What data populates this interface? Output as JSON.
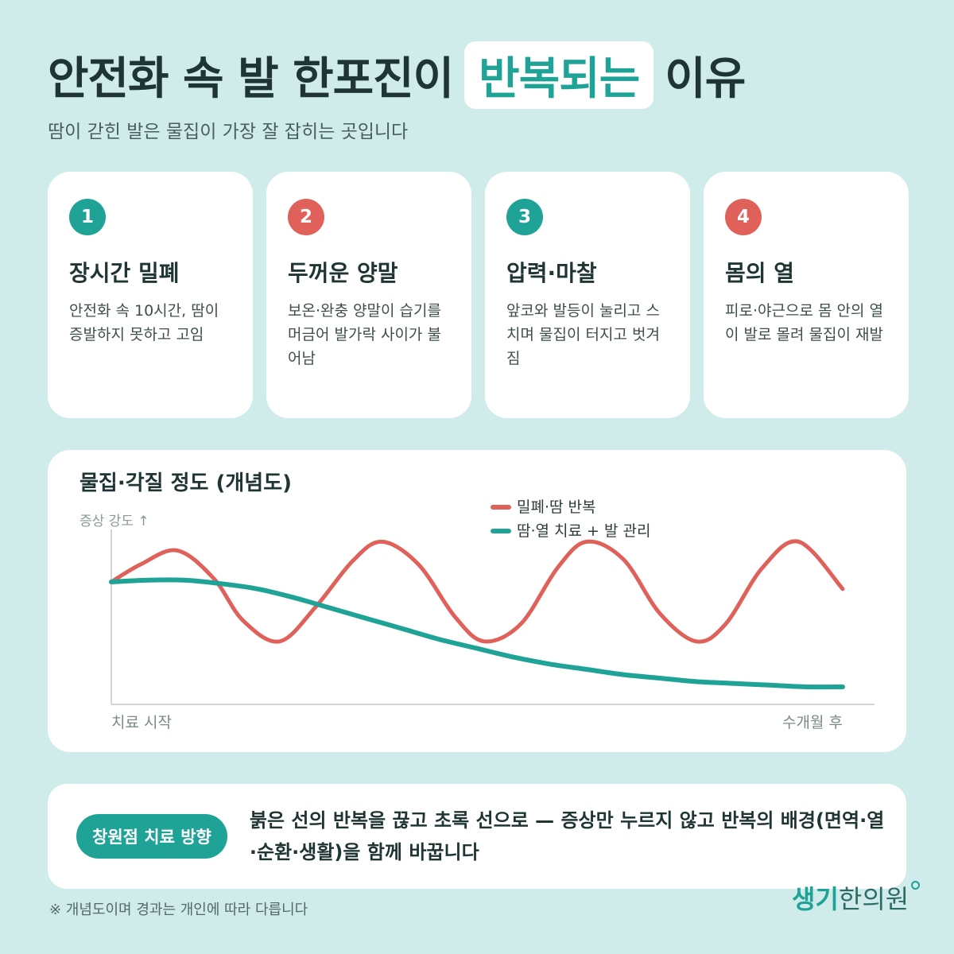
{
  "header": {
    "title_before": "안전화 속 발 한포진이",
    "title_highlight": "반복되는",
    "title_after": "이유",
    "subtitle": "땀이 갇힌 발은 물집이 가장 잘 잡히는 곳입니다"
  },
  "cards": [
    {
      "number": "1",
      "title": "장시간 밀폐",
      "desc": "안전화 속 10시간, 땀이 증발하지 못하고 고임",
      "color": "#1fa396"
    },
    {
      "number": "2",
      "title": "두꺼운 양말",
      "desc": "보온·완충 양말이 습기를 머금어 발가락 사이가 불어남",
      "color": "#e0615a"
    },
    {
      "number": "3",
      "title": "압력·마찰",
      "desc": "앞코와 발등이 눌리고 스치며 물집이 터지고 벗겨짐",
      "color": "#1fa396"
    },
    {
      "number": "4",
      "title": "몸의 열",
      "desc": "피로·야근으로 몸 안의 열이 발로 몰려 물집이 재발",
      "color": "#e0615a"
    }
  ],
  "chart_data": {
    "type": "line",
    "title": "물집·각질 정도 (개념도)",
    "ylabel": "증상 강도 ↑",
    "x_start_label": "치료 시작",
    "x_end_label": "수개월 후",
    "xlim": [
      0,
      100
    ],
    "ylim": [
      0,
      10
    ],
    "grid": false,
    "legend_position": "top-right",
    "series": [
      {
        "name": "밀폐·땀 반복",
        "color": "#e0615a",
        "x": [
          0,
          4,
          9,
          14,
          18,
          23,
          28,
          33,
          37,
          42,
          47,
          51,
          56,
          61,
          65,
          70,
          75,
          80,
          84,
          89,
          94,
          100
        ],
        "y": [
          7.0,
          8.0,
          8.8,
          7.2,
          4.8,
          3.6,
          5.6,
          8.2,
          9.3,
          8.0,
          5.0,
          3.6,
          4.6,
          7.8,
          9.3,
          8.3,
          5.2,
          3.6,
          4.6,
          7.8,
          9.3,
          6.6
        ]
      },
      {
        "name": "땀·열 치료 + 발 관리",
        "color": "#1fa396",
        "x": [
          0,
          5,
          10,
          15,
          20,
          25,
          30,
          35,
          40,
          45,
          50,
          55,
          60,
          65,
          70,
          75,
          80,
          85,
          90,
          95,
          100
        ],
        "y": [
          7.0,
          7.1,
          7.1,
          6.9,
          6.6,
          6.1,
          5.5,
          4.9,
          4.3,
          3.7,
          3.2,
          2.7,
          2.3,
          2.0,
          1.7,
          1.5,
          1.3,
          1.2,
          1.1,
          1.0,
          1.0
        ]
      }
    ]
  },
  "bottom": {
    "pill": "창원점 치료 방향",
    "text": "붉은 선의 반복을 끊고 초록 선으로 — 증상만 누르지 않고 반복의 배경(면역·열·순환·생활)을 함께 바꿉니다"
  },
  "footnote": "※ 개념도이며 경과는 개인에 따라 다릅니다",
  "logo": {
    "part1": "생기",
    "part2": "한의원"
  }
}
